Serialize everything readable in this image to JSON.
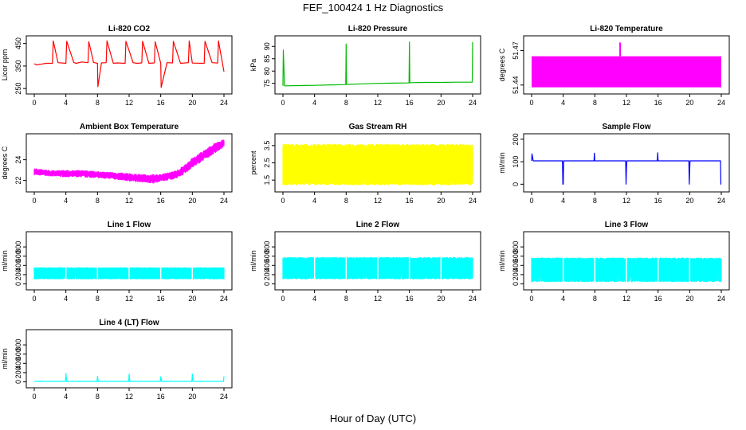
{
  "title": "FEF_100424  1 Hz Diagnostics",
  "xlabel": "Hour of Day (UTC)",
  "chart_data": [
    {
      "type": "line",
      "title": "Li-820 CO2",
      "ylabel": "Licor ppm",
      "color": "#ff0000",
      "xlim": [
        0,
        24
      ],
      "ylim": [
        240,
        470
      ],
      "xticks": [
        0,
        4,
        8,
        12,
        16,
        20,
        24
      ],
      "yticks": [
        250,
        350,
        450
      ],
      "x": [
        0,
        0.3,
        0.8,
        1.5,
        2.3,
        2.4,
        3.0,
        4.0,
        4.1,
        5.0,
        5.3,
        6.0,
        6.8,
        6.9,
        7.5,
        8.0,
        8.05,
        8.5,
        9.1,
        9.2,
        10.0,
        10.5,
        11.5,
        11.6,
        12.5,
        13.0,
        13.6,
        13.7,
        14.5,
        15.2,
        15.3,
        16.0,
        16.05,
        16.8,
        17.5,
        17.6,
        18.5,
        19.5,
        19.6,
        20.0,
        21.5,
        21.6,
        22.5,
        23.2,
        23.3,
        24.0
      ],
      "y": [
        360,
        355,
        358,
        362,
        362,
        462,
        365,
        362,
        460,
        366,
        362,
        368,
        365,
        458,
        366,
        362,
        258,
        364,
        365,
        462,
        362,
        364,
        362,
        460,
        365,
        362,
        364,
        460,
        362,
        364,
        458,
        362,
        255,
        365,
        364,
        460,
        362,
        365,
        462,
        363,
        362,
        460,
        365,
        363,
        462,
        325
      ]
    },
    {
      "type": "line",
      "title": "Li-820 Pressure",
      "ylabel": "kPa",
      "color": "#00bb00",
      "xlim": [
        0,
        24
      ],
      "ylim": [
        72,
        93
      ],
      "xticks": [
        0,
        4,
        8,
        12,
        16,
        20,
        24
      ],
      "yticks": [
        75,
        80,
        85,
        90
      ],
      "x": [
        0,
        0.05,
        0.2,
        2.0,
        4.0,
        6.0,
        7.95,
        8.0,
        8.05,
        10.0,
        12.0,
        14.0,
        15.95,
        16.0,
        16.05,
        18.0,
        20.0,
        22.0,
        23.95,
        24.0
      ],
      "y": [
        74.0,
        88.5,
        74.0,
        74.1,
        74.2,
        74.4,
        74.5,
        91.0,
        74.6,
        74.8,
        75.0,
        75.1,
        75.2,
        91.8,
        75.3,
        75.4,
        75.4,
        75.5,
        75.5,
        91.8
      ]
    },
    {
      "type": "area",
      "title": "Li-820 Temperature",
      "ylabel": "degrees C",
      "color": "#ff00ff",
      "xlim": [
        0,
        24
      ],
      "ylim": [
        51.435,
        51.48
      ],
      "xticks": [
        0,
        4,
        8,
        12,
        16,
        20,
        24
      ],
      "yticks": [
        51.44,
        51.47
      ],
      "band_low": 51.438,
      "band_high": 51.465,
      "spike_x": 11.2,
      "spike_y": 51.477
    },
    {
      "type": "area",
      "title": "Ambient Box Temperature",
      "ylabel": "degrees C",
      "color": "#ff00ff",
      "xlim": [
        0,
        24
      ],
      "ylim": [
        21.2,
        26.2
      ],
      "xticks": [
        0,
        4,
        8,
        12,
        16,
        20,
        24
      ],
      "yticks": [
        22,
        24
      ],
      "x": [
        0,
        2,
        4,
        6,
        8,
        10,
        12,
        14,
        15,
        16,
        17,
        18,
        19,
        20,
        21,
        22,
        23,
        24
      ],
      "low": [
        22.5,
        22.4,
        22.3,
        22.3,
        22.2,
        22.1,
        21.9,
        21.8,
        21.7,
        21.9,
        22.0,
        22.2,
        22.6,
        23.2,
        23.7,
        24.2,
        24.7,
        25.2
      ],
      "high": [
        23.2,
        23.0,
        23.0,
        23.0,
        22.9,
        22.8,
        22.7,
        22.6,
        22.6,
        22.6,
        22.8,
        23.0,
        23.5,
        24.2,
        24.7,
        25.2,
        25.7,
        26.0
      ]
    },
    {
      "type": "area",
      "title": "Gas Stream RH",
      "ylabel": "percent",
      "color": "#ffff00",
      "xlim": [
        0,
        24
      ],
      "ylim": [
        1.0,
        4.0
      ],
      "xticks": [
        0,
        4,
        8,
        12,
        16,
        20,
        24
      ],
      "yticks": [
        1.5,
        2.5,
        3.5
      ],
      "band_low": 1.2,
      "band_high": 3.6
    },
    {
      "type": "line",
      "title": "Sample Flow",
      "ylabel": "ml/min",
      "color": "#0000ff",
      "xlim": [
        0,
        24
      ],
      "ylim": [
        -20,
        210
      ],
      "xticks": [
        0,
        4,
        8,
        12,
        16,
        20,
        24
      ],
      "yticks": [
        0,
        100,
        200
      ],
      "x": [
        0,
        0.05,
        0.2,
        3.9,
        3.95,
        4.0,
        4.05,
        7.9,
        7.95,
        8.0,
        8.05,
        11.9,
        11.95,
        12.0,
        12.05,
        15.9,
        15.95,
        16.0,
        16.05,
        19.9,
        19.95,
        20.0,
        20.05,
        23.9,
        23.95,
        24.0
      ],
      "y": [
        104,
        135,
        104,
        104,
        0,
        0,
        104,
        104,
        138,
        104,
        104,
        104,
        0,
        70,
        104,
        104,
        140,
        104,
        104,
        104,
        0,
        60,
        104,
        104,
        0,
        0
      ]
    },
    {
      "type": "area",
      "title": "Line 1 Flow",
      "ylabel": "ml/min",
      "color": "#00ffff",
      "xlim": [
        0,
        24
      ],
      "ylim": [
        -60,
        1060
      ],
      "xticks": [
        0,
        4,
        8,
        12,
        16,
        20,
        24
      ],
      "yticks": [
        0,
        200,
        400,
        600,
        800
      ],
      "band_low": 100,
      "band_high": 360
    },
    {
      "type": "area",
      "title": "Line 2 Flow",
      "ylabel": "ml/min",
      "color": "#00ffff",
      "xlim": [
        0,
        24
      ],
      "ylim": [
        -60,
        1060
      ],
      "xticks": [
        0,
        4,
        8,
        12,
        16,
        20,
        24
      ],
      "yticks": [
        0,
        200,
        400,
        600,
        800
      ],
      "band_low": 100,
      "band_high": 580
    },
    {
      "type": "area",
      "title": "Line 3 Flow",
      "ylabel": "ml/min",
      "color": "#00ffff",
      "xlim": [
        0,
        24
      ],
      "ylim": [
        -60,
        1060
      ],
      "xticks": [
        0,
        4,
        8,
        12,
        16,
        20,
        24
      ],
      "yticks": [
        0,
        200,
        400,
        600,
        800
      ],
      "band_low": 40,
      "band_high": 570
    },
    {
      "type": "line",
      "title": "Line 4 (LT) Flow",
      "ylabel": "ml/min",
      "color": "#00ffff",
      "xlim": [
        0,
        24
      ],
      "ylim": [
        -60,
        1060
      ],
      "xticks": [
        0,
        4,
        8,
        12,
        16,
        20,
        24
      ],
      "yticks": [
        0,
        200,
        400,
        600,
        800
      ],
      "x": [
        0,
        3.95,
        4.0,
        4.1,
        7.95,
        8.0,
        8.1,
        11.95,
        12.0,
        12.1,
        15.95,
        16.0,
        16.1,
        19.95,
        20.0,
        20.1,
        23.95,
        24.0
      ],
      "y": [
        10,
        10,
        180,
        10,
        10,
        120,
        10,
        10,
        170,
        10,
        10,
        110,
        10,
        10,
        170,
        10,
        10,
        120
      ]
    }
  ]
}
